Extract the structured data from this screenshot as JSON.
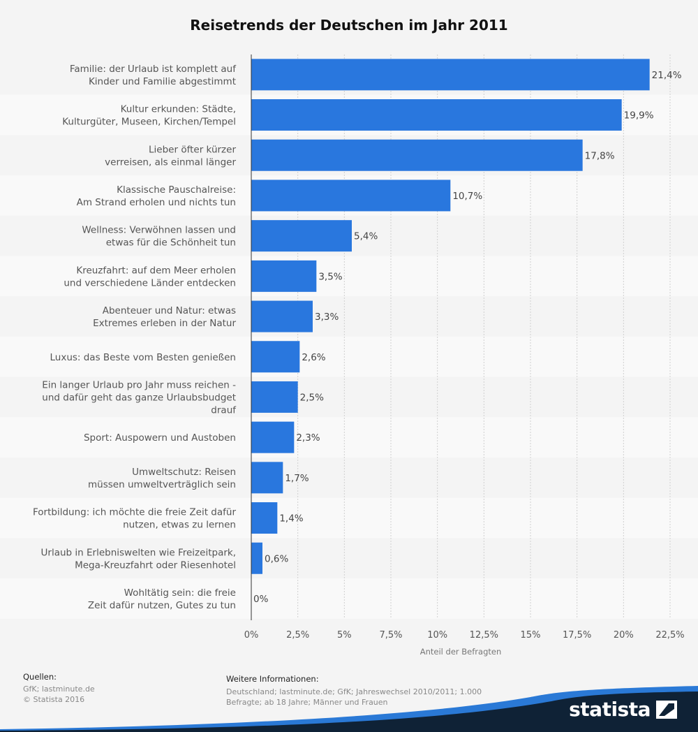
{
  "colors": {
    "bar": "#2977de",
    "background": "#f4f4f4",
    "stripe": "#f9f9f9",
    "brand_dark": "#0f2236",
    "brand_blue": "#2a79d6"
  },
  "chart_data": {
    "type": "bar",
    "orientation": "horizontal",
    "title": "Reisetrends der Deutschen im Jahr 2011",
    "xlabel": "Anteil der Befragten",
    "xlim": [
      0,
      22.5
    ],
    "ticks": [
      {
        "value": 0,
        "label": "0%"
      },
      {
        "value": 2.5,
        "label": "2,5%"
      },
      {
        "value": 5,
        "label": "5%"
      },
      {
        "value": 7.5,
        "label": "7,5%"
      },
      {
        "value": 10,
        "label": "10%"
      },
      {
        "value": 12.5,
        "label": "12,5%"
      },
      {
        "value": 15,
        "label": "15%"
      },
      {
        "value": 17.5,
        "label": "17,5%"
      },
      {
        "value": 20,
        "label": "20%"
      },
      {
        "value": 22.5,
        "label": "22,5%"
      }
    ],
    "grid": "vertical dashed",
    "categories": [
      [
        "Familie: der Urlaub ist komplett auf",
        "Kinder und Familie abgestimmt"
      ],
      [
        "Kultur erkunden: Städte,",
        "Kulturgüter, Museen, Kirchen/Tempel"
      ],
      [
        "Lieber öfter kürzer",
        "verreisen, als einmal länger"
      ],
      [
        "Klassische Pauschalreise:",
        "Am Strand erholen und nichts tun"
      ],
      [
        "Wellness: Verwöhnen lassen und",
        "etwas für die Schönheit tun"
      ],
      [
        "Kreuzfahrt: auf dem Meer erholen",
        "und verschiedene Länder entdecken"
      ],
      [
        "Abenteuer und Natur: etwas",
        "Extremes erleben in der Natur"
      ],
      [
        "Luxus: das Beste vom Besten genießen"
      ],
      [
        "Ein langer Urlaub pro Jahr muss reichen -",
        "und dafür geht das ganze Urlaubsbudget",
        "drauf"
      ],
      [
        "Sport: Auspowern und Austoben"
      ],
      [
        "Umweltschutz: Reisen",
        "müssen umweltverträglich sein"
      ],
      [
        "Fortbildung: ich möchte die freie Zeit dafür",
        "nutzen, etwas zu lernen"
      ],
      [
        "Urlaub in Erlebniswelten wie Freizeitpark,",
        "Mega-Kreuzfahrt oder Riesenhotel"
      ],
      [
        "Wohltätig sein: die freie",
        "Zeit dafür nutzen, Gutes zu tun"
      ]
    ],
    "values": [
      21.4,
      19.9,
      17.8,
      10.7,
      5.4,
      3.5,
      3.3,
      2.6,
      2.5,
      2.3,
      1.7,
      1.4,
      0.6,
      0
    ],
    "value_labels": [
      "21,4%",
      "19,9%",
      "17,8%",
      "10,7%",
      "5,4%",
      "3,5%",
      "3,3%",
      "2,6%",
      "2,5%",
      "2,3%",
      "1,7%",
      "1,4%",
      "0,6%",
      "0%"
    ]
  },
  "footer": {
    "sources_heading": "Quellen:",
    "sources_lines": [
      "GfK; lastminute.de",
      "© Statista 2016"
    ],
    "info_heading": "Weitere Informationen:",
    "info_lines": [
      "Deutschland; lastminute.de; GfK; Jahreswechsel 2010/2011; 1.000",
      "Befragte; ab 18 Jahre; Männer und Frauen"
    ]
  },
  "brand": {
    "logo_text": "statista"
  }
}
